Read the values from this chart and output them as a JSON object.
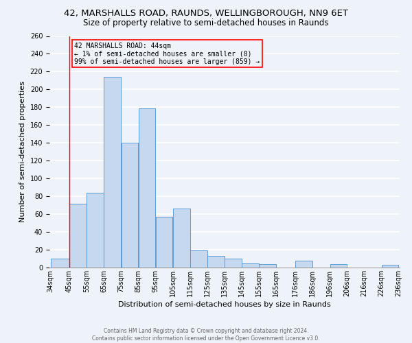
{
  "title_line1": "42, MARSHALLS ROAD, RAUNDS, WELLINGBOROUGH, NN9 6ET",
  "title_line2": "Size of property relative to semi-detached houses in Raunds",
  "xlabel": "Distribution of semi-detached houses by size in Raunds",
  "ylabel": "Number of semi-detached properties",
  "bar_left_edges": [
    34,
    45,
    55,
    65,
    75,
    85,
    95,
    105,
    115,
    125,
    135,
    145,
    155,
    165,
    176,
    186,
    196,
    206,
    216,
    226
  ],
  "bar_widths": [
    11,
    10,
    10,
    10,
    10,
    10,
    10,
    10,
    10,
    10,
    10,
    10,
    10,
    11,
    10,
    10,
    10,
    10,
    10,
    10
  ],
  "bar_heights": [
    10,
    72,
    84,
    214,
    140,
    179,
    57,
    66,
    19,
    13,
    10,
    5,
    4,
    0,
    8,
    0,
    4,
    0,
    0,
    3
  ],
  "bar_color": "#c5d8f0",
  "bar_edge_color": "#5b9bd5",
  "tick_labels": [
    "34sqm",
    "45sqm",
    "55sqm",
    "65sqm",
    "75sqm",
    "85sqm",
    "95sqm",
    "105sqm",
    "115sqm",
    "125sqm",
    "135sqm",
    "145sqm",
    "155sqm",
    "165sqm",
    "176sqm",
    "186sqm",
    "196sqm",
    "206sqm",
    "216sqm",
    "226sqm",
    "236sqm"
  ],
  "ylim": [
    0,
    260
  ],
  "yticks": [
    0,
    20,
    40,
    60,
    80,
    100,
    120,
    140,
    160,
    180,
    200,
    220,
    240,
    260
  ],
  "red_line_x": 45,
  "annotation_title": "42 MARSHALLS ROAD: 44sqm",
  "annotation_line1": "← 1% of semi-detached houses are smaller (8)",
  "annotation_line2": "99% of semi-detached houses are larger (859) →",
  "footer_line1": "Contains HM Land Registry data © Crown copyright and database right 2024.",
  "footer_line2": "Contains public sector information licensed under the Open Government Licence v3.0.",
  "background_color": "#eef2f9",
  "grid_color": "#ffffff",
  "title_fontsize": 9.5,
  "subtitle_fontsize": 8.5,
  "axis_label_fontsize": 8,
  "tick_fontsize": 7
}
